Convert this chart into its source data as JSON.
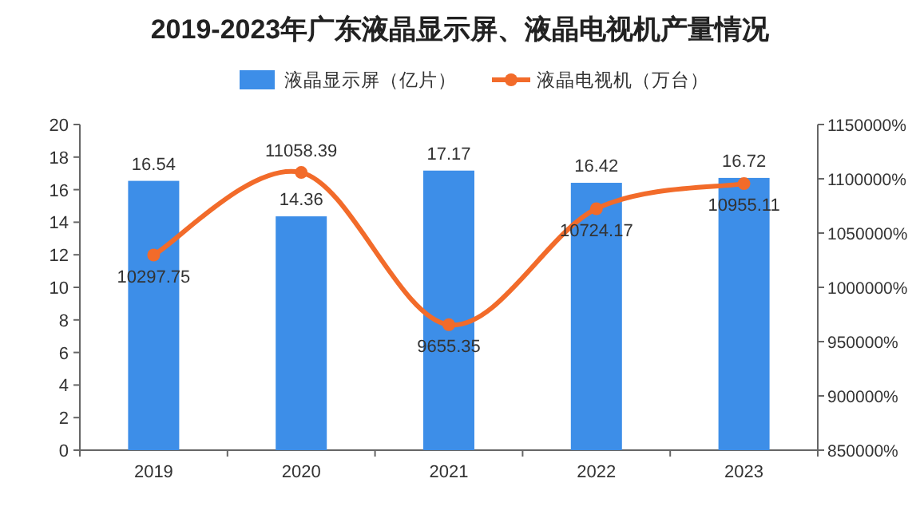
{
  "chart_data": {
    "type": "bar",
    "title": "2019-2023年广东液晶显示屏、液晶电视机产量情况",
    "categories": [
      "2019",
      "2020",
      "2021",
      "2022",
      "2023"
    ],
    "series": [
      {
        "name": "液晶显示屏（亿片）",
        "color": "#3d8ee8",
        "values": [
          16.54,
          14.36,
          17.17,
          16.42,
          16.72
        ]
      },
      {
        "name": "液晶电视机（万台）",
        "type": "line",
        "axis": "y2",
        "color": "#f26b2a",
        "marker": "circle",
        "values": [
          10297.75,
          11058.39,
          9655.35,
          10724.17,
          10955.11
        ]
      }
    ],
    "ylim": [
      0,
      20
    ],
    "yticks": [
      0,
      2,
      4,
      6,
      8,
      10,
      12,
      14,
      16,
      18,
      20
    ],
    "y2lim": [
      8500,
      11500
    ],
    "y2ticks": [
      {
        "value": 8500,
        "label": "850000%"
      },
      {
        "value": 9000,
        "label": "900000%"
      },
      {
        "value": 9500,
        "label": "950000%"
      },
      {
        "value": 10000,
        "label": "1000000%"
      },
      {
        "value": 10500,
        "label": "1050000%"
      },
      {
        "value": 11000,
        "label": "1100000%"
      },
      {
        "value": 11500,
        "label": "1150000%"
      }
    ],
    "data_labels": true,
    "legend": "top",
    "grid": false
  }
}
